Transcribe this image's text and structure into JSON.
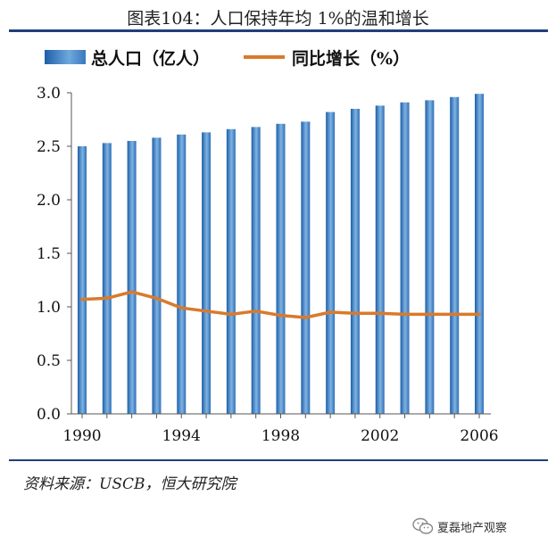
{
  "title": "图表104：人口保持年均 1%的温和增长",
  "source": "资料来源：USCB，恒大研究院",
  "watermark": "夏磊地产观察",
  "colors": {
    "bar": "#3a78bd",
    "line": "#d97a2b",
    "rule": "#1f3f7a"
  },
  "chart_data": {
    "type": "bar+line",
    "legend": [
      "总人口（亿人）",
      "同比增长（%）"
    ],
    "legend_position": "top",
    "x": [
      1990,
      1991,
      1992,
      1993,
      1994,
      1995,
      1996,
      1997,
      1998,
      1999,
      2000,
      2001,
      2002,
      2003,
      2004,
      2005,
      2006
    ],
    "x_tick_labels": [
      "1990",
      "1994",
      "1998",
      "2002",
      "2006"
    ],
    "ylim": [
      0,
      3.0
    ],
    "y_ticks": [
      "0.0",
      "0.5",
      "1.0",
      "1.5",
      "2.0",
      "2.5",
      "3.0"
    ],
    "grid": false,
    "series": [
      {
        "name": "总人口（亿人）",
        "type": "bar",
        "values": [
          2.5,
          2.53,
          2.55,
          2.58,
          2.61,
          2.63,
          2.66,
          2.68,
          2.71,
          2.73,
          2.82,
          2.85,
          2.88,
          2.91,
          2.93,
          2.96,
          2.99
        ]
      },
      {
        "name": "同比增长（%）",
        "type": "line",
        "values": [
          1.07,
          1.08,
          1.14,
          1.08,
          0.99,
          0.96,
          0.93,
          0.96,
          0.92,
          0.9,
          0.95,
          0.94,
          0.94,
          0.93,
          0.93,
          0.93,
          0.93
        ]
      }
    ]
  }
}
